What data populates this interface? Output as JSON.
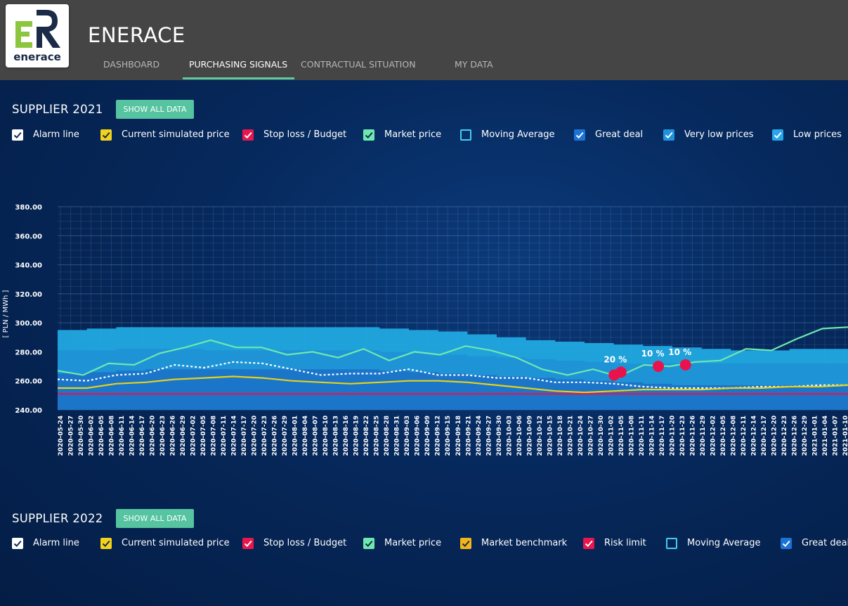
{
  "app": {
    "title": "ENERACE",
    "logo_text": "enerace"
  },
  "tabs": [
    {
      "label": "DASHBOARD"
    },
    {
      "label": "PURCHASING SIGNALS"
    },
    {
      "label": "CONTRACTUAL SITUATION"
    },
    {
      "label": "MY DATA"
    }
  ],
  "active_tab": "PURCHASING SIGNALS",
  "colors": {
    "header": "#454545",
    "accent": "#5bc8a6",
    "background": "#06224f",
    "market_price": "#6de8b0",
    "simulated_price": "#e6d11c",
    "stop_loss": "#e8134d",
    "moving_average": "#ffffff",
    "band_great_deal": "#1b73c8",
    "band_very_low": "#1f93d6",
    "band_low": "#21a8e0"
  },
  "sections": [
    {
      "title": "SUPPLIER 2021",
      "button": "SHOW ALL DATA",
      "legend": [
        {
          "label": "Alarm line",
          "color": "#ffffff",
          "checked": true
        },
        {
          "label": "Current simulated price",
          "color": "#f2d21b",
          "checked": true
        },
        {
          "label": "Stop loss / Budget",
          "color": "#e8164f",
          "checked": true
        },
        {
          "label": "Market price",
          "color": "#6de8b0",
          "checked": true
        },
        {
          "label": "Moving Average",
          "color": "#44cdf2",
          "checked": false
        },
        {
          "label": "Great deal",
          "color": "#1b73d6",
          "checked": true
        },
        {
          "label": "Very low prices",
          "color": "#1f93e0",
          "checked": true
        },
        {
          "label": "Low prices",
          "color": "#28a5ec",
          "checked": true
        }
      ]
    },
    {
      "title": "SUPPLIER 2022",
      "button": "SHOW ALL DATA",
      "legend": [
        {
          "label": "Alarm line",
          "color": "#ffffff",
          "checked": true
        },
        {
          "label": "Current simulated price",
          "color": "#f2d21b",
          "checked": true
        },
        {
          "label": "Stop loss / Budget",
          "color": "#e8164f",
          "checked": true
        },
        {
          "label": "Market price",
          "color": "#6de8b0",
          "checked": true
        },
        {
          "label": "Market benchmark",
          "color": "#f2b41b",
          "checked": true
        },
        {
          "label": "Risk limit",
          "color": "#e8164f",
          "checked": true
        },
        {
          "label": "Moving Average",
          "color": "#44cdf2",
          "checked": false
        },
        {
          "label": "Great deal",
          "color": "#1b73d6",
          "checked": true
        }
      ]
    }
  ],
  "chart_data": {
    "type": "line",
    "ylabel": "[ PLN / MWh ]",
    "ylim": [
      240,
      380
    ],
    "yticks": [
      "240.00",
      "260.00",
      "280.00",
      "300.00",
      "320.00",
      "340.00",
      "360.00",
      "380.00"
    ],
    "grid": true,
    "x_tick_labels": [
      "2020-05-24",
      "2020-05-27",
      "2020-05-30",
      "2020-06-02",
      "2020-06-05",
      "2020-06-08",
      "2020-06-11",
      "2020-06-14",
      "2020-06-17",
      "2020-06-20",
      "2020-06-23",
      "2020-06-26",
      "2020-06-29",
      "2020-07-02",
      "2020-07-05",
      "2020-07-08",
      "2020-07-11",
      "2020-07-14",
      "2020-07-17",
      "2020-07-20",
      "2020-07-23",
      "2020-07-26",
      "2020-07-29",
      "2020-08-01",
      "2020-08-04",
      "2020-08-07",
      "2020-08-10",
      "2020-08-13",
      "2020-08-16",
      "2020-08-19",
      "2020-08-22",
      "2020-08-25",
      "2020-08-28",
      "2020-08-31",
      "2020-09-03",
      "2020-09-06",
      "2020-09-09",
      "2020-09-12",
      "2020-09-15",
      "2020-09-18",
      "2020-09-21",
      "2020-09-24",
      "2020-09-27",
      "2020-09-30",
      "2020-10-03",
      "2020-10-06",
      "2020-10-09",
      "2020-10-12",
      "2020-10-15",
      "2020-10-18",
      "2020-10-21",
      "2020-10-24",
      "2020-10-27",
      "2020-10-30",
      "2020-11-02",
      "2020-11-05",
      "2020-11-08",
      "2020-11-11",
      "2020-11-14",
      "2020-11-17",
      "2020-11-20",
      "2020-11-23",
      "2020-11-26",
      "2020-11-29",
      "2020-12-02",
      "2020-12-05",
      "2020-12-08",
      "2020-12-11",
      "2020-12-14",
      "2020-12-17",
      "2020-12-20",
      "2020-12-23",
      "2020-12-26",
      "2020-12-29",
      "2021-01-01",
      "2021-01-04",
      "2021-01-07",
      "2021-01-10"
    ],
    "series": [
      {
        "name": "Low prices",
        "kind": "band",
        "color": "#21a8e0",
        "values": [
          295,
          296,
          297,
          297,
          297,
          297,
          297,
          297,
          297,
          297,
          297,
          296,
          295,
          294,
          292,
          290,
          288,
          287,
          286,
          285,
          284,
          283,
          282,
          281,
          281,
          282,
          282,
          282
        ]
      },
      {
        "name": "Very low prices",
        "kind": "band",
        "color": "#1f93d6",
        "values": [
          281,
          281,
          282,
          282,
          282,
          281,
          281,
          281,
          281,
          281,
          281,
          280,
          279,
          278,
          277,
          276,
          275,
          274,
          273,
          272,
          272,
          272,
          272,
          272,
          272,
          272,
          272,
          272
        ]
      },
      {
        "name": "Great deal",
        "kind": "band",
        "color": "#1b73c8",
        "values": [
          265,
          266,
          267,
          268,
          268,
          268,
          268,
          268,
          268,
          268,
          268,
          267,
          266,
          265,
          264,
          263,
          262,
          261,
          260,
          259,
          258,
          257,
          257,
          257,
          257,
          257,
          257,
          257
        ]
      },
      {
        "name": "Market price",
        "kind": "line",
        "color": "#6de8b0",
        "values": [
          267,
          264,
          272,
          271,
          279,
          283,
          288,
          283,
          283,
          278,
          280,
          276,
          282,
          274,
          280,
          278,
          284,
          281,
          276,
          268,
          264,
          268,
          263,
          271,
          270,
          273,
          274,
          282,
          281,
          289,
          296,
          297
        ]
      },
      {
        "name": "Alarm line",
        "kind": "dotted",
        "color": "#ffffff",
        "values": [
          261,
          260,
          264,
          265,
          271,
          269,
          273,
          272,
          268,
          264,
          265,
          265,
          268,
          264,
          264,
          262,
          262,
          259,
          259,
          258,
          256,
          255,
          255,
          255,
          256,
          256,
          257,
          257
        ]
      },
      {
        "name": "Current simulated price",
        "kind": "line",
        "color": "#e6d11c",
        "values": [
          255,
          255,
          258,
          259,
          261,
          262,
          263,
          262,
          260,
          259,
          258,
          259,
          260,
          260,
          259,
          257,
          255,
          253,
          252,
          253,
          254,
          254,
          254,
          255,
          255,
          256,
          256,
          257
        ]
      },
      {
        "name": "Stop loss / Budget",
        "kind": "line",
        "color": "#e8134d",
        "values": [
          251,
          251,
          251,
          251,
          251,
          251,
          251,
          251,
          251,
          251,
          251,
          251,
          251,
          251,
          251,
          251,
          251,
          251,
          251,
          251,
          251,
          251,
          251,
          251,
          251,
          251,
          251,
          251
        ]
      }
    ],
    "signals": [
      {
        "date": "2020-11-03",
        "value": 264,
        "label": ""
      },
      {
        "date": "2020-11-05",
        "value": 266,
        "label": "20 %"
      },
      {
        "date": "2020-11-16",
        "value": 270,
        "label": "10 %"
      },
      {
        "date": "2020-11-24",
        "value": 271,
        "label": "10 %"
      }
    ]
  }
}
